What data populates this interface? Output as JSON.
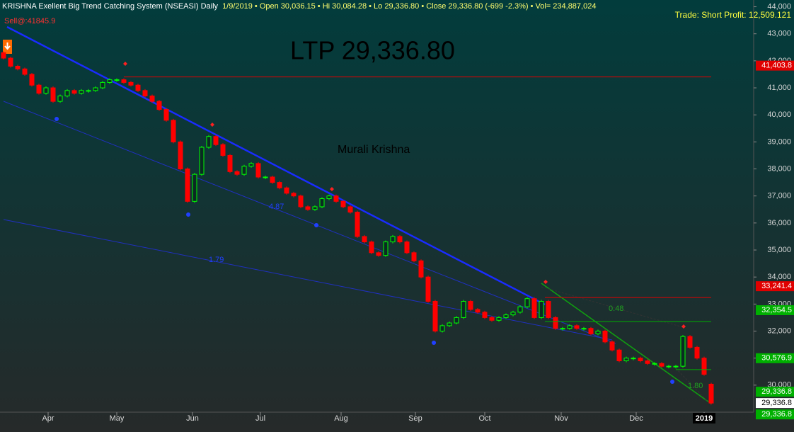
{
  "chart_data": {
    "type": "candlestick",
    "title": "KRISHNA Exellent Big Trend Catching System (NSEASI) Daily",
    "subtitle": "1/9/2019  • Open 30,036.15  • Hi 30,084.28  • Lo 29,336.80  • Close 29,336.80 (-699 -2.3%)  • Vol= 234,887,024",
    "trade_note": "Trade: Short Profit: 12,509.121",
    "sell_note": "Sell@:41845.9",
    "ltp": "LTP 29,336.80",
    "author": "Murali Krishna",
    "trendline_labels": [
      "4.87",
      "1.79",
      "0.48",
      "1.80"
    ],
    "up_color": "#00ff00",
    "down_color": "#ff0000",
    "open": [
      42300,
      42100,
      41800,
      41700,
      41500,
      41100,
      40800,
      41000,
      40500,
      40700,
      40900,
      40800,
      40900,
      40900,
      41000,
      41200,
      41300,
      41300,
      41200,
      41100,
      40900,
      40700,
      40500,
      40200,
      39800,
      39000,
      38000,
      36800,
      37800,
      38800,
      39200,
      38900,
      38500,
      37900,
      37800,
      38100,
      38200,
      37700,
      37700,
      37500,
      37300,
      37100,
      37000,
      36600,
      36500,
      36600,
      36900,
      37000,
      36800,
      36600,
      36400,
      35500,
      35300,
      34900,
      34800,
      35300,
      35500,
      35300,
      34900,
      34600,
      34000,
      33100,
      32000,
      32200,
      32300,
      32500,
      33100,
      32800,
      32700,
      32500,
      32400,
      32500,
      32600,
      32700,
      32900,
      33200,
      32500,
      33100,
      32500,
      32100,
      32100,
      32200,
      32100,
      32100,
      31900,
      32000,
      31600,
      31300,
      30900,
      31000,
      31000,
      30900,
      30800,
      30800,
      30700,
      30700,
      30700,
      31800,
      31400,
      31000,
      30036.15
    ],
    "close": [
      42100,
      41800,
      41700,
      41500,
      41100,
      40800,
      41000,
      40500,
      40700,
      40900,
      40800,
      40900,
      40900,
      41000,
      41200,
      41300,
      41300,
      41200,
      41100,
      40900,
      40700,
      40500,
      40200,
      39800,
      39000,
      38000,
      36800,
      37800,
      38800,
      39200,
      38900,
      38500,
      37900,
      37800,
      38100,
      38200,
      37700,
      37700,
      37500,
      37300,
      37100,
      37000,
      36600,
      36500,
      36600,
      36900,
      37000,
      36800,
      36600,
      36400,
      35500,
      35300,
      34900,
      34800,
      35300,
      35500,
      35300,
      34900,
      34600,
      34000,
      33100,
      32000,
      32200,
      32300,
      32500,
      33100,
      32800,
      32700,
      32500,
      32400,
      32500,
      32600,
      32700,
      32900,
      33200,
      32500,
      33100,
      32500,
      32100,
      32100,
      32200,
      32100,
      32100,
      31900,
      32000,
      31600,
      31300,
      30900,
      31000,
      31000,
      30900,
      30800,
      30800,
      30700,
      30700,
      30700,
      31800,
      31400,
      31000,
      30400,
      29336.8
    ],
    "xlim": [
      -0.5,
      106
    ],
    "xticks": [
      {
        "value": 6.3,
        "label": "Apr"
      },
      {
        "value": 16,
        "label": "May"
      },
      {
        "value": 26.7,
        "label": "Jun"
      },
      {
        "value": 36.3,
        "label": "Jul"
      },
      {
        "value": 47.7,
        "label": "Aug"
      },
      {
        "value": 58.2,
        "label": "Sep"
      },
      {
        "value": 68,
        "label": "Oct"
      },
      {
        "value": 78.8,
        "label": "Nov"
      },
      {
        "value": 89.4,
        "label": "Dec"
      },
      {
        "value": 99,
        "label": "2019"
      }
    ],
    "ylim": [
      29000,
      44250
    ],
    "yticks": [
      {
        "value": 30000,
        "label": "30,000"
      },
      {
        "value": 31000,
        "label": "31,000"
      },
      {
        "value": 32000,
        "label": "32,000"
      },
      {
        "value": 33000,
        "label": "33,000"
      },
      {
        "value": 34000,
        "label": "34,000"
      },
      {
        "value": 35000,
        "label": "35,000"
      },
      {
        "value": 36000,
        "label": "36,000"
      },
      {
        "value": 37000,
        "label": "37,000"
      },
      {
        "value": 38000,
        "label": "38,000"
      },
      {
        "value": 39000,
        "label": "39,000"
      },
      {
        "value": 40000,
        "label": "40,000"
      },
      {
        "value": 41000,
        "label": "41,000"
      },
      {
        "value": 42000,
        "label": "42,000"
      },
      {
        "value": 43000,
        "label": "43,000"
      },
      {
        "value": 44000,
        "label": "44,000"
      }
    ],
    "levels": [
      {
        "value": 41403.8,
        "label": "41,403.8",
        "color": "#e00000"
      },
      {
        "value": 33241.4,
        "label": "33,241.4",
        "color": "#e00000"
      },
      {
        "value": 32354.5,
        "label": "32,354.5",
        "color": "#00b000"
      },
      {
        "value": 30576.9,
        "label": "30,576.9",
        "color": "#00b000"
      },
      {
        "value": 29336.8,
        "label": "29,336.8",
        "color": "#00b000"
      },
      {
        "value": 29336.8,
        "label": "29,336.8",
        "color": "#ffffff"
      },
      {
        "value": 29336.8,
        "label": "29,336.8",
        "color": "#00b000"
      }
    ]
  }
}
